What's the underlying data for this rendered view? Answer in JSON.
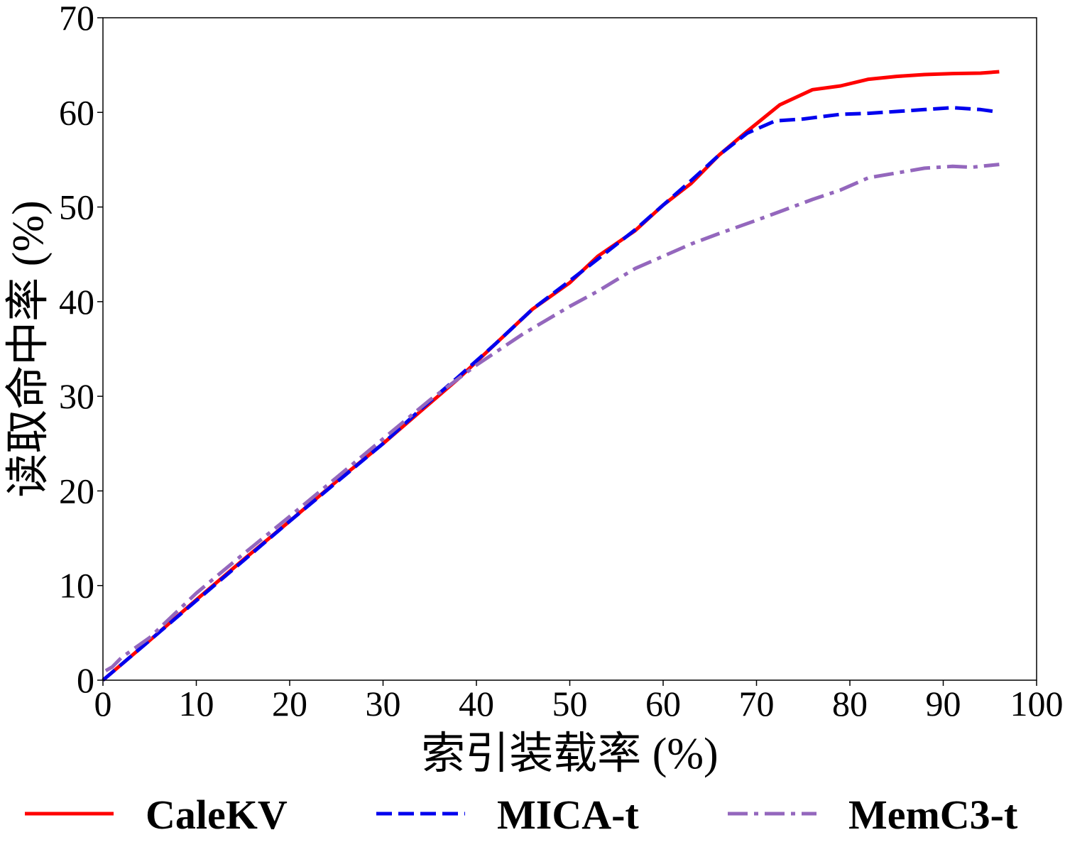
{
  "chart_data": {
    "type": "line",
    "xlabel": "索引装载率 (%)",
    "ylabel": "读取命中率 (%)",
    "xlim": [
      0,
      100
    ],
    "ylim": [
      0,
      70
    ],
    "xticks": [
      "0",
      "10",
      "20",
      "30",
      "40",
      "50",
      "60",
      "70",
      "80",
      "90",
      "100"
    ],
    "yticks": [
      "0",
      "10",
      "20",
      "30",
      "40",
      "50",
      "60",
      "70"
    ],
    "grid": false,
    "legend_position": "bottom",
    "series": [
      {
        "name": "CaleKV",
        "color": "#ff0000",
        "style": "solid",
        "x": [
          0,
          5,
          10,
          15,
          20,
          25,
          30,
          34,
          38,
          42,
          46,
          50,
          53,
          57,
          60,
          63,
          66,
          69,
          72.5,
          76,
          79,
          82,
          85,
          88,
          91,
          94,
          96
        ],
        "y": [
          0,
          4.2,
          8.5,
          12.7,
          16.8,
          21,
          25,
          28.4,
          31.8,
          35.5,
          39.2,
          42,
          44.8,
          47.5,
          50.2,
          52.5,
          55.5,
          58,
          60.8,
          62.4,
          62.8,
          63.5,
          63.8,
          64.0,
          64.1,
          64.15,
          64.3
        ]
      },
      {
        "name": "MICA-t",
        "color": "#0000ee",
        "style": "dashed",
        "x": [
          0,
          5,
          10,
          15,
          20,
          25,
          30,
          34,
          38,
          42,
          46,
          50,
          53,
          57,
          60,
          63,
          66,
          69,
          72,
          75,
          79,
          82,
          85,
          88,
          91,
          94,
          95.5
        ],
        "y": [
          0,
          4.2,
          8.4,
          12.6,
          16.8,
          20.9,
          25,
          28.6,
          32,
          35.5,
          39.2,
          42.2,
          44.5,
          47.6,
          50.2,
          52.8,
          55.5,
          57.8,
          59.1,
          59.3,
          59.8,
          59.9,
          60.1,
          60.3,
          60.5,
          60.3,
          60.1
        ]
      },
      {
        "name": "MemC3-t",
        "color": "#9467bd",
        "style": "dashdot",
        "x": [
          0.3,
          1,
          2,
          5,
          10,
          15,
          20,
          25,
          30,
          35,
          40,
          45,
          50,
          53,
          57,
          60,
          63,
          66,
          70,
          73,
          76,
          79,
          82,
          85,
          88,
          91,
          93,
          96
        ],
        "y": [
          1,
          1.4,
          2.4,
          4.5,
          9.2,
          13.3,
          17.3,
          21.4,
          25.5,
          29.6,
          33.3,
          36.6,
          39.5,
          41.1,
          43.5,
          44.8,
          46.1,
          47.2,
          48.6,
          49.7,
          50.8,
          51.8,
          53.1,
          53.6,
          54.1,
          54.3,
          54.2,
          54.5
        ]
      }
    ]
  }
}
